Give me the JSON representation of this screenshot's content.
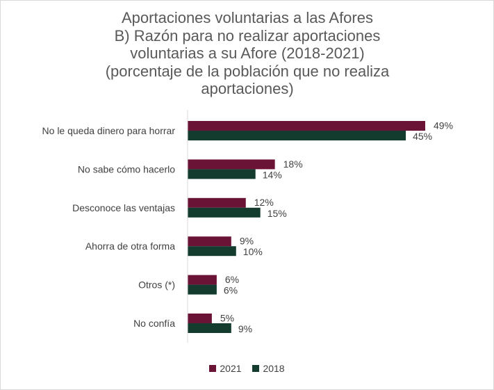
{
  "chart_data": {
    "type": "bar",
    "orientation": "horizontal",
    "title_lines": [
      "Aportaciones voluntarias a las Afores",
      "B) Razón para no realizar aportaciones",
      "voluntarias a su Afore (2018-2021)",
      "(porcentaje de la población que no realiza",
      "aportaciones)"
    ],
    "categories": [
      "No le queda dinero para horrar",
      "No sabe cómo hacerlo",
      "Desconoce las ventajas",
      "Ahorra de otra forma",
      "Otros (*)",
      "No confía"
    ],
    "series": [
      {
        "name": "2021",
        "color": "#6b1237",
        "values": [
          49,
          18,
          12,
          9,
          6,
          5
        ]
      },
      {
        "name": "2018",
        "color": "#133b2e",
        "values": [
          45,
          14,
          15,
          10,
          6,
          9
        ]
      }
    ],
    "value_suffix": "%",
    "xlim": [
      0,
      52
    ],
    "grid": false,
    "legend_position": "bottom"
  }
}
